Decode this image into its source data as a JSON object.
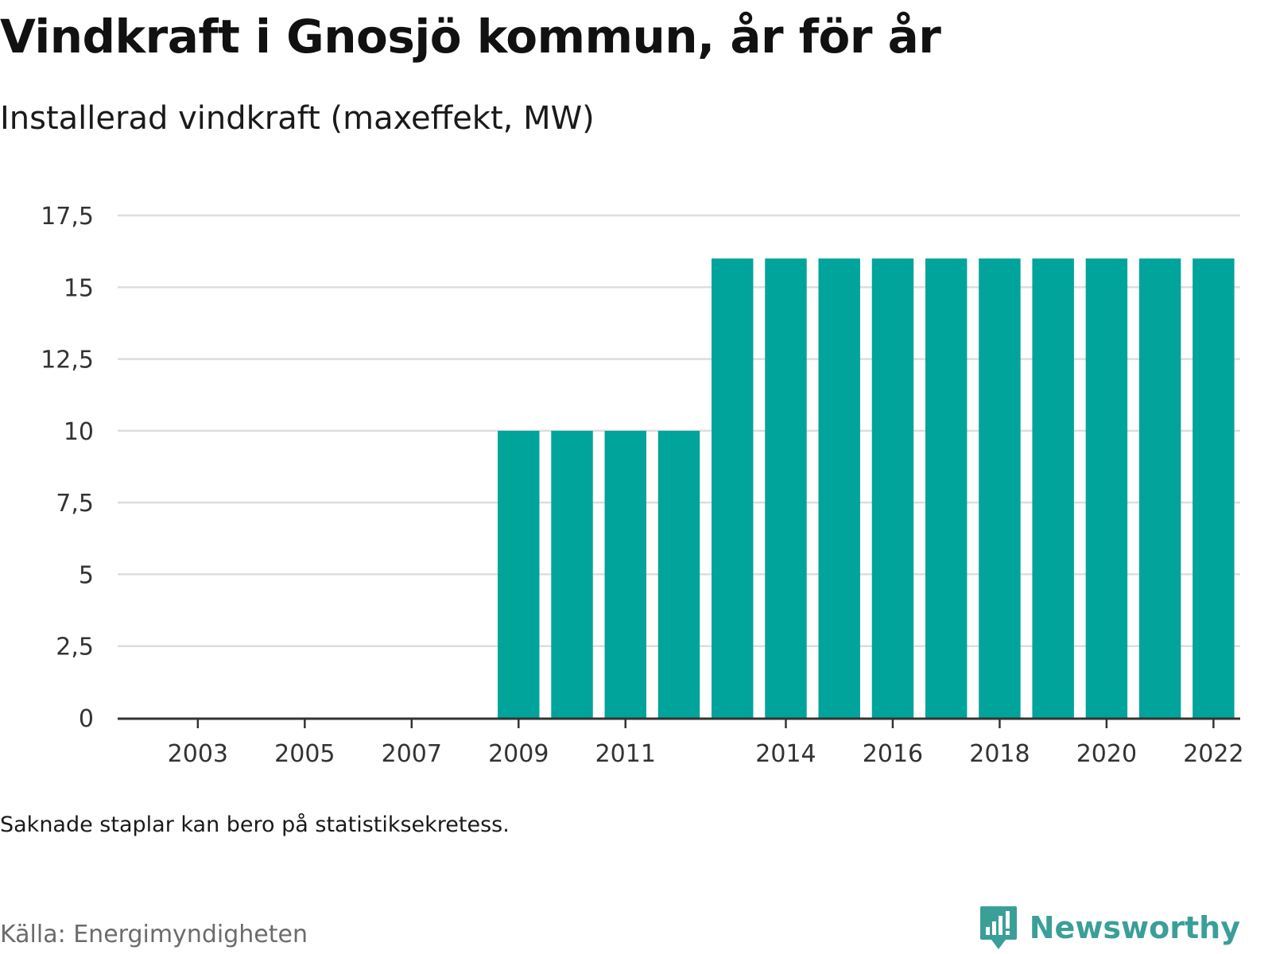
{
  "title": "Vindkraft i Gnosjö kommun, år för år",
  "subtitle": "Installerad vindkraft (maxeffekt, MW)",
  "note": "Saknade staplar kan bero på statistiksekretess.",
  "source": "Källa: Energimyndigheten",
  "brand": {
    "name": "Newsworthy",
    "icon": "newsworthy-logo-icon",
    "color": "#3a9f98"
  },
  "colors": {
    "bar": "#00a49a",
    "grid": "#dddddd",
    "axis": "#333333"
  },
  "chart_data": {
    "type": "bar",
    "categories": [
      "2002",
      "2003",
      "2004",
      "2005",
      "2006",
      "2007",
      "2008",
      "2009",
      "2010",
      "2011",
      "2012",
      "2013",
      "2014",
      "2015",
      "2016",
      "2017",
      "2018",
      "2019",
      "2020",
      "2021",
      "2022"
    ],
    "values": [
      null,
      null,
      null,
      null,
      null,
      null,
      null,
      10,
      10,
      10,
      10,
      16,
      16,
      16,
      16,
      16,
      16,
      16,
      16,
      16,
      16
    ],
    "x_tick_labels": [
      "2003",
      "2005",
      "2007",
      "2009",
      "2011",
      "2014",
      "2016",
      "2018",
      "2020",
      "2022"
    ],
    "y_ticks": [
      0,
      2.5,
      5,
      7.5,
      10,
      12.5,
      15,
      17.5
    ],
    "y_tick_labels": [
      "0",
      "2,5",
      "5",
      "7,5",
      "10",
      "12,5",
      "15",
      "17,5"
    ],
    "ylim": [
      0,
      17.5
    ],
    "xlabel": "",
    "ylabel": "",
    "grid": true,
    "legend": "none"
  }
}
